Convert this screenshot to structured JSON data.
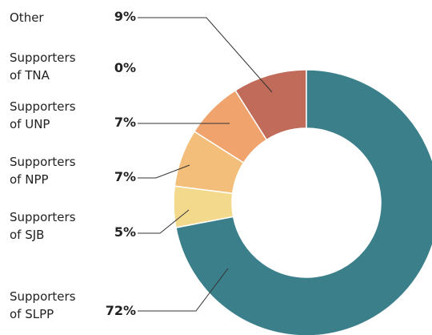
{
  "chart_data": {
    "type": "donut",
    "categories": [
      "Other",
      "Supporters of TNA",
      "Supporters of UNP",
      "Supporters of NPP",
      "Supporters of SJB",
      "Supporters of SLPP"
    ],
    "values": [
      9,
      0,
      7,
      7,
      5,
      72
    ],
    "value_labels": [
      "9%",
      "0%",
      "7%",
      "7%",
      "5%",
      "72%"
    ],
    "colors": [
      "#c16c5a",
      "#d98a6a",
      "#f0a36c",
      "#f3be7a",
      "#f3d98c",
      "#3a7f8a"
    ]
  }
}
